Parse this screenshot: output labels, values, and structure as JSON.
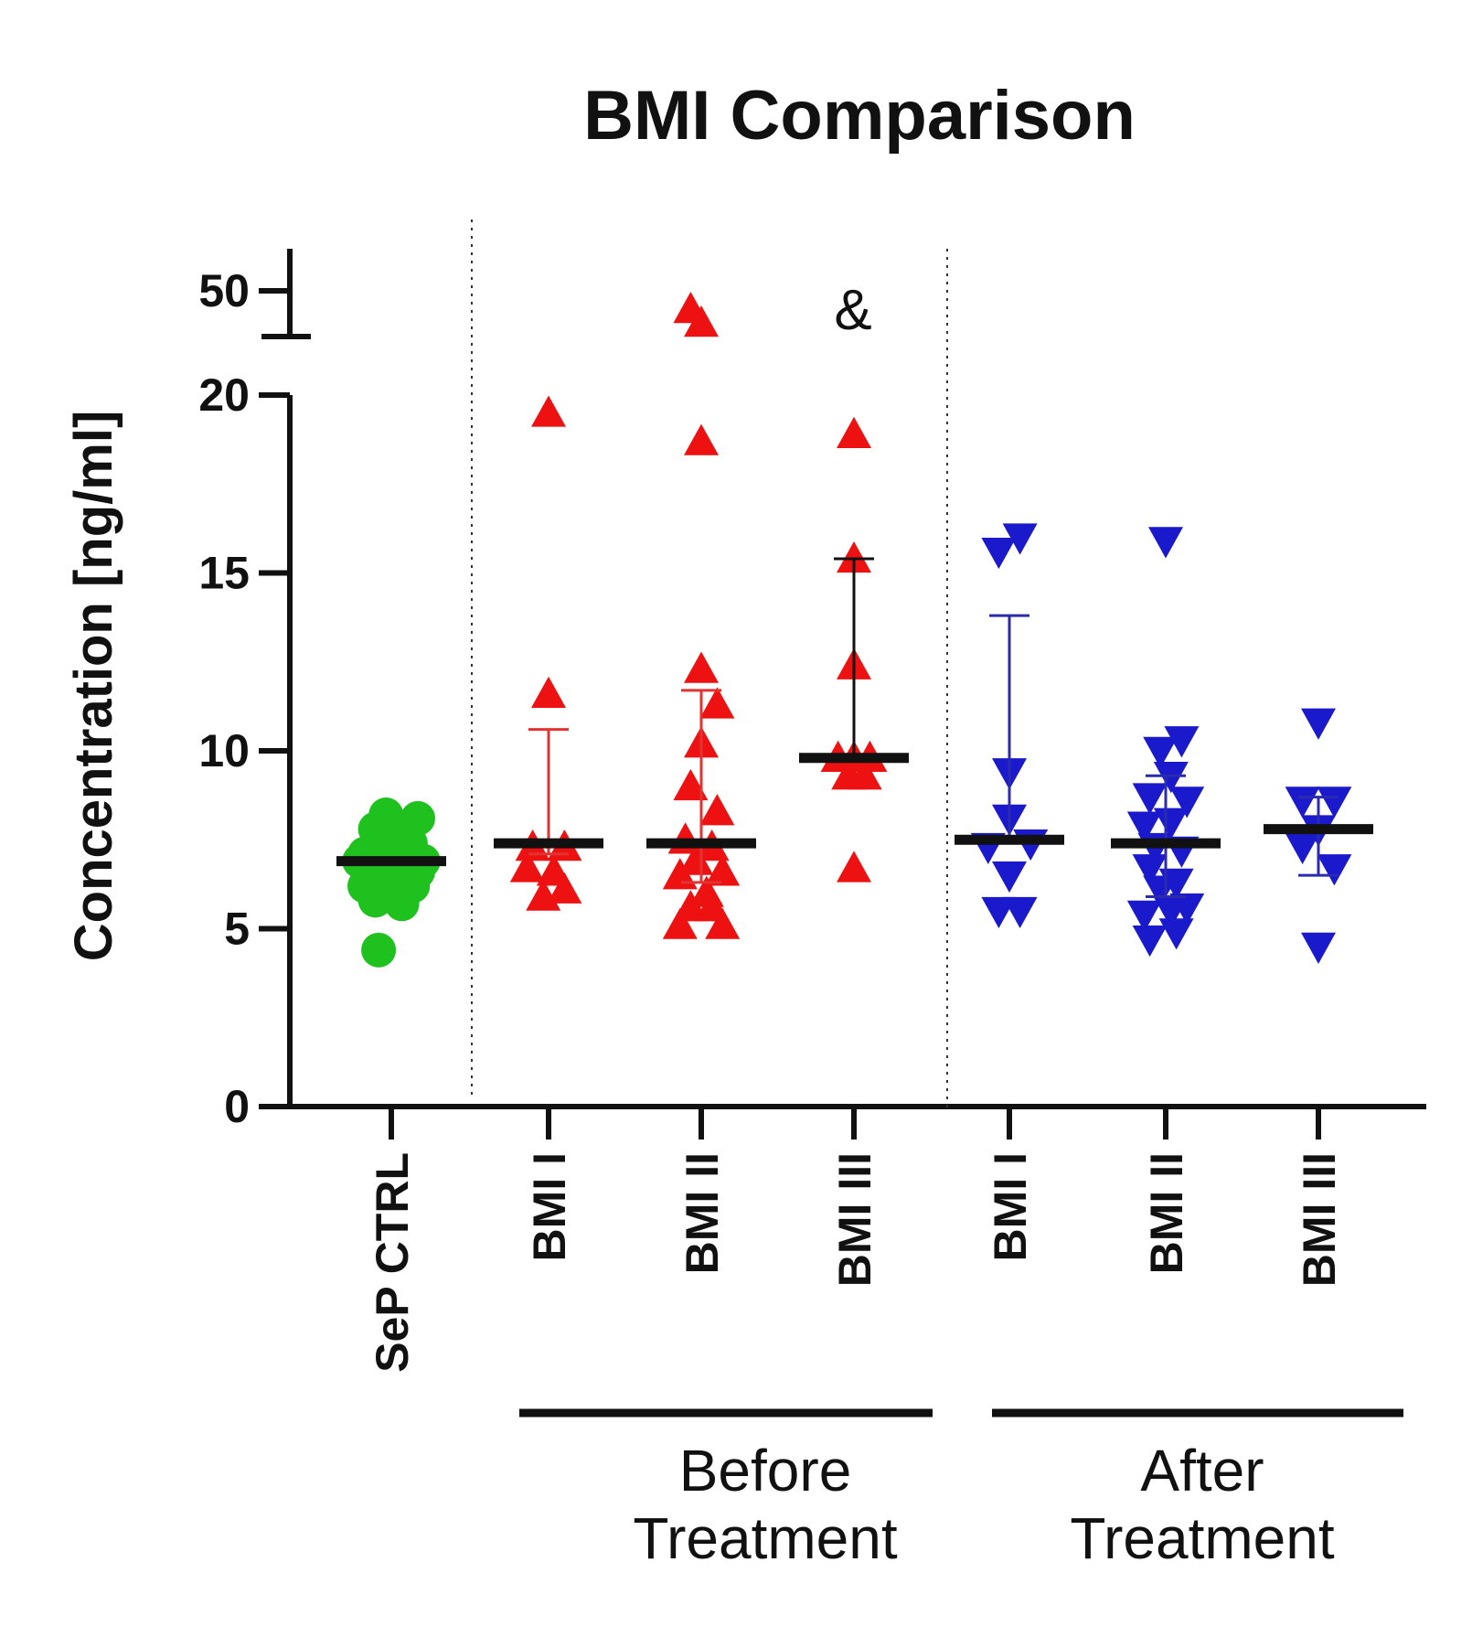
{
  "chart_data": {
    "type": "scatter",
    "title": "BMI Comparison",
    "ylabel": "Concentration [ng/ml]",
    "y_break": {
      "from": 20,
      "to": 45
    },
    "ylim_lower": [
      0,
      20
    ],
    "ylim_upper": [
      45,
      50
    ],
    "y_ticks": [
      "0",
      "5",
      "10",
      "15",
      "20",
      "50"
    ],
    "y_tick_values": [
      0,
      5,
      10,
      15,
      20,
      50
    ],
    "categories": [
      "SeP CTRL",
      "BMI I",
      "BMI II",
      "BMI III",
      "BMI I",
      "BMI II",
      "BMI III"
    ],
    "groups": [
      {
        "label": "Before Treatment",
        "categories": [
          1,
          2,
          3
        ]
      },
      {
        "label": "After Treatment",
        "categories": [
          4,
          5,
          6
        ]
      }
    ],
    "annotations": [
      {
        "category": 3,
        "text": "&",
        "y": 48
      }
    ],
    "series": [
      {
        "name": "SeP CTRL",
        "marker": "circle",
        "color": "#1fc11f",
        "median": 6.9,
        "error": [
          6.9,
          6.9
        ],
        "points": [
          {
            "dx": -0.25,
            "y": 7.1
          },
          {
            "dx": -0.15,
            "y": 7.8
          },
          {
            "dx": -0.05,
            "y": 8.2
          },
          {
            "dx": 0.1,
            "y": 7.6
          },
          {
            "dx": 0.25,
            "y": 8.1
          },
          {
            "dx": -0.3,
            "y": 6.9
          },
          {
            "dx": -0.2,
            "y": 6.5
          },
          {
            "dx": 0.0,
            "y": 6.8
          },
          {
            "dx": 0.15,
            "y": 7.0
          },
          {
            "dx": 0.3,
            "y": 6.9
          },
          {
            "dx": -0.25,
            "y": 6.2
          },
          {
            "dx": -0.1,
            "y": 6.0
          },
          {
            "dx": 0.05,
            "y": 6.4
          },
          {
            "dx": 0.2,
            "y": 6.2
          },
          {
            "dx": -0.15,
            "y": 5.8
          },
          {
            "dx": 0.1,
            "y": 5.7
          },
          {
            "dx": 0.25,
            "y": 6.6
          },
          {
            "dx": -0.05,
            "y": 7.3
          },
          {
            "dx": 0.18,
            "y": 7.4
          },
          {
            "dx": -0.12,
            "y": 4.4
          }
        ]
      },
      {
        "name": "BMI I (Before Treatment)",
        "marker": "triangle-up",
        "color": "#ee1111",
        "median": 7.4,
        "error": [
          7.1,
          10.6
        ],
        "points": [
          {
            "dx": 0.0,
            "y": 19.5
          },
          {
            "dx": 0.0,
            "y": 11.6
          },
          {
            "dx": -0.15,
            "y": 7.3
          },
          {
            "dx": 0.15,
            "y": 7.3
          },
          {
            "dx": -0.2,
            "y": 6.7
          },
          {
            "dx": 0.05,
            "y": 6.6
          },
          {
            "dx": -0.05,
            "y": 5.9
          },
          {
            "dx": 0.15,
            "y": 6.1
          }
        ]
      },
      {
        "name": "BMI II (Before Treatment)",
        "marker": "triangle-up",
        "color": "#ee1111",
        "median": 7.4,
        "error": [
          6.3,
          11.7
        ],
        "points": [
          {
            "dx": -0.1,
            "y": 48
          },
          {
            "dx": 0.0,
            "y": 46.5
          },
          {
            "dx": 0.0,
            "y": 18.7
          },
          {
            "dx": 0.0,
            "y": 12.3
          },
          {
            "dx": 0.15,
            "y": 11.3
          },
          {
            "dx": 0.0,
            "y": 10.2
          },
          {
            "dx": -0.1,
            "y": 9.0
          },
          {
            "dx": 0.15,
            "y": 8.3
          },
          {
            "dx": -0.15,
            "y": 7.5
          },
          {
            "dx": 0.1,
            "y": 7.3
          },
          {
            "dx": -0.05,
            "y": 6.9
          },
          {
            "dx": 0.2,
            "y": 6.6
          },
          {
            "dx": -0.2,
            "y": 6.5
          },
          {
            "dx": 0.05,
            "y": 6.0
          },
          {
            "dx": -0.1,
            "y": 5.6
          },
          {
            "dx": 0.1,
            "y": 5.6
          },
          {
            "dx": -0.2,
            "y": 5.1
          },
          {
            "dx": 0.2,
            "y": 5.1
          }
        ]
      },
      {
        "name": "BMI III (Before Treatment)",
        "marker": "triangle-up",
        "color": "#ee1111",
        "median": 9.8,
        "error": [
          9.8,
          15.4
        ],
        "points": [
          {
            "dx": 0.0,
            "y": 18.9
          },
          {
            "dx": 0.0,
            "y": 15.4
          },
          {
            "dx": 0.0,
            "y": 12.4
          },
          {
            "dx": -0.15,
            "y": 9.8
          },
          {
            "dx": 0.0,
            "y": 9.8
          },
          {
            "dx": 0.15,
            "y": 9.8
          },
          {
            "dx": -0.05,
            "y": 9.3
          },
          {
            "dx": 0.1,
            "y": 9.3
          },
          {
            "dx": 0.0,
            "y": 6.7
          }
        ]
      },
      {
        "name": "BMI I (After Treatment)",
        "marker": "triangle-down",
        "color": "#1a1acc",
        "median": 7.5,
        "error": [
          7.5,
          13.8
        ],
        "points": [
          {
            "dx": -0.1,
            "y": 15.6
          },
          {
            "dx": 0.1,
            "y": 16.0
          },
          {
            "dx": 0.0,
            "y": 9.4
          },
          {
            "dx": 0.0,
            "y": 8.1
          },
          {
            "dx": -0.2,
            "y": 7.3
          },
          {
            "dx": 0.2,
            "y": 7.4
          },
          {
            "dx": -0.1,
            "y": 5.5
          },
          {
            "dx": 0.1,
            "y": 5.5
          },
          {
            "dx": 0.0,
            "y": 6.5
          }
        ]
      },
      {
        "name": "BMI II (After Treatment)",
        "marker": "triangle-down",
        "color": "#1a1acc",
        "median": 7.4,
        "error": [
          5.9,
          9.3
        ],
        "points": [
          {
            "dx": 0.0,
            "y": 15.9
          },
          {
            "dx": -0.05,
            "y": 10.0
          },
          {
            "dx": 0.15,
            "y": 10.3
          },
          {
            "dx": 0.05,
            "y": 9.3
          },
          {
            "dx": -0.15,
            "y": 8.7
          },
          {
            "dx": 0.2,
            "y": 8.6
          },
          {
            "dx": -0.2,
            "y": 7.9
          },
          {
            "dx": 0.05,
            "y": 8.0
          },
          {
            "dx": -0.1,
            "y": 7.3
          },
          {
            "dx": 0.15,
            "y": 7.2
          },
          {
            "dx": -0.15,
            "y": 6.7
          },
          {
            "dx": 0.1,
            "y": 6.3
          },
          {
            "dx": -0.05,
            "y": 6.1
          },
          {
            "dx": 0.2,
            "y": 5.6
          },
          {
            "dx": -0.2,
            "y": 5.4
          },
          {
            "dx": 0.05,
            "y": 5.5
          },
          {
            "dx": -0.15,
            "y": 4.7
          },
          {
            "dx": 0.1,
            "y": 4.9
          }
        ]
      },
      {
        "name": "BMI III (After Treatment)",
        "marker": "triangle-down",
        "color": "#1a1acc",
        "median": 7.8,
        "error": [
          6.5,
          8.7
        ],
        "points": [
          {
            "dx": 0.0,
            "y": 10.8
          },
          {
            "dx": -0.15,
            "y": 8.6
          },
          {
            "dx": 0.15,
            "y": 8.6
          },
          {
            "dx": 0.0,
            "y": 7.8
          },
          {
            "dx": -0.15,
            "y": 7.3
          },
          {
            "dx": 0.15,
            "y": 6.7
          },
          {
            "dx": 0.0,
            "y": 4.5
          }
        ]
      }
    ]
  }
}
